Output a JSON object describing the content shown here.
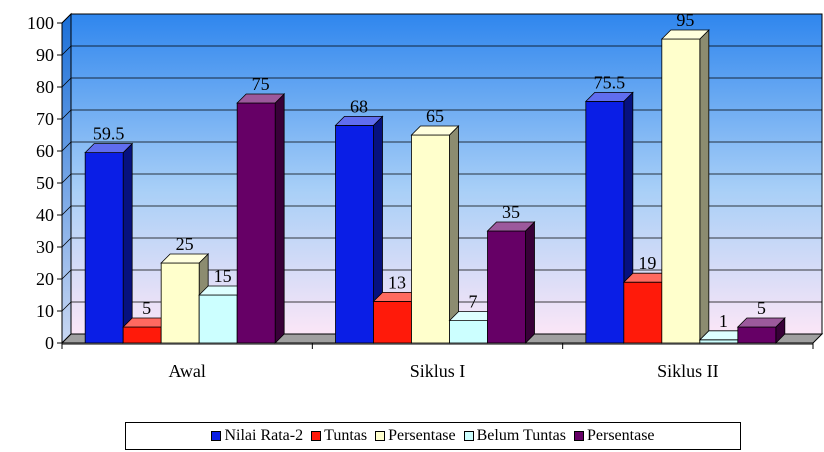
{
  "chart_data": {
    "type": "bar",
    "title": "",
    "xlabel": "",
    "ylabel": "",
    "categories": [
      "Awal",
      "Siklus I",
      "Siklus II"
    ],
    "ylim": [
      0,
      100
    ],
    "yticks": [
      "0",
      "10",
      "20",
      "30",
      "40",
      "50",
      "60",
      "70",
      "80",
      "90",
      "100"
    ],
    "grid": true,
    "legend_position": "bottom",
    "series": [
      {
        "name": "Nilai Rata-2",
        "color": "#0a1ee6",
        "values": [
          59.5,
          68,
          75.5
        ]
      },
      {
        "name": "Tuntas",
        "color": "#ff1a0a",
        "values": [
          5,
          13,
          19
        ]
      },
      {
        "name": "Persentase",
        "color": "#ffffcc",
        "values": [
          25,
          65,
          95
        ]
      },
      {
        "name": "Belum Tuntas",
        "color": "#ccffff",
        "values": [
          15,
          7,
          1
        ]
      },
      {
        "name": "Persentase",
        "color": "#660066",
        "values": [
          75,
          35,
          5
        ]
      }
    ]
  }
}
